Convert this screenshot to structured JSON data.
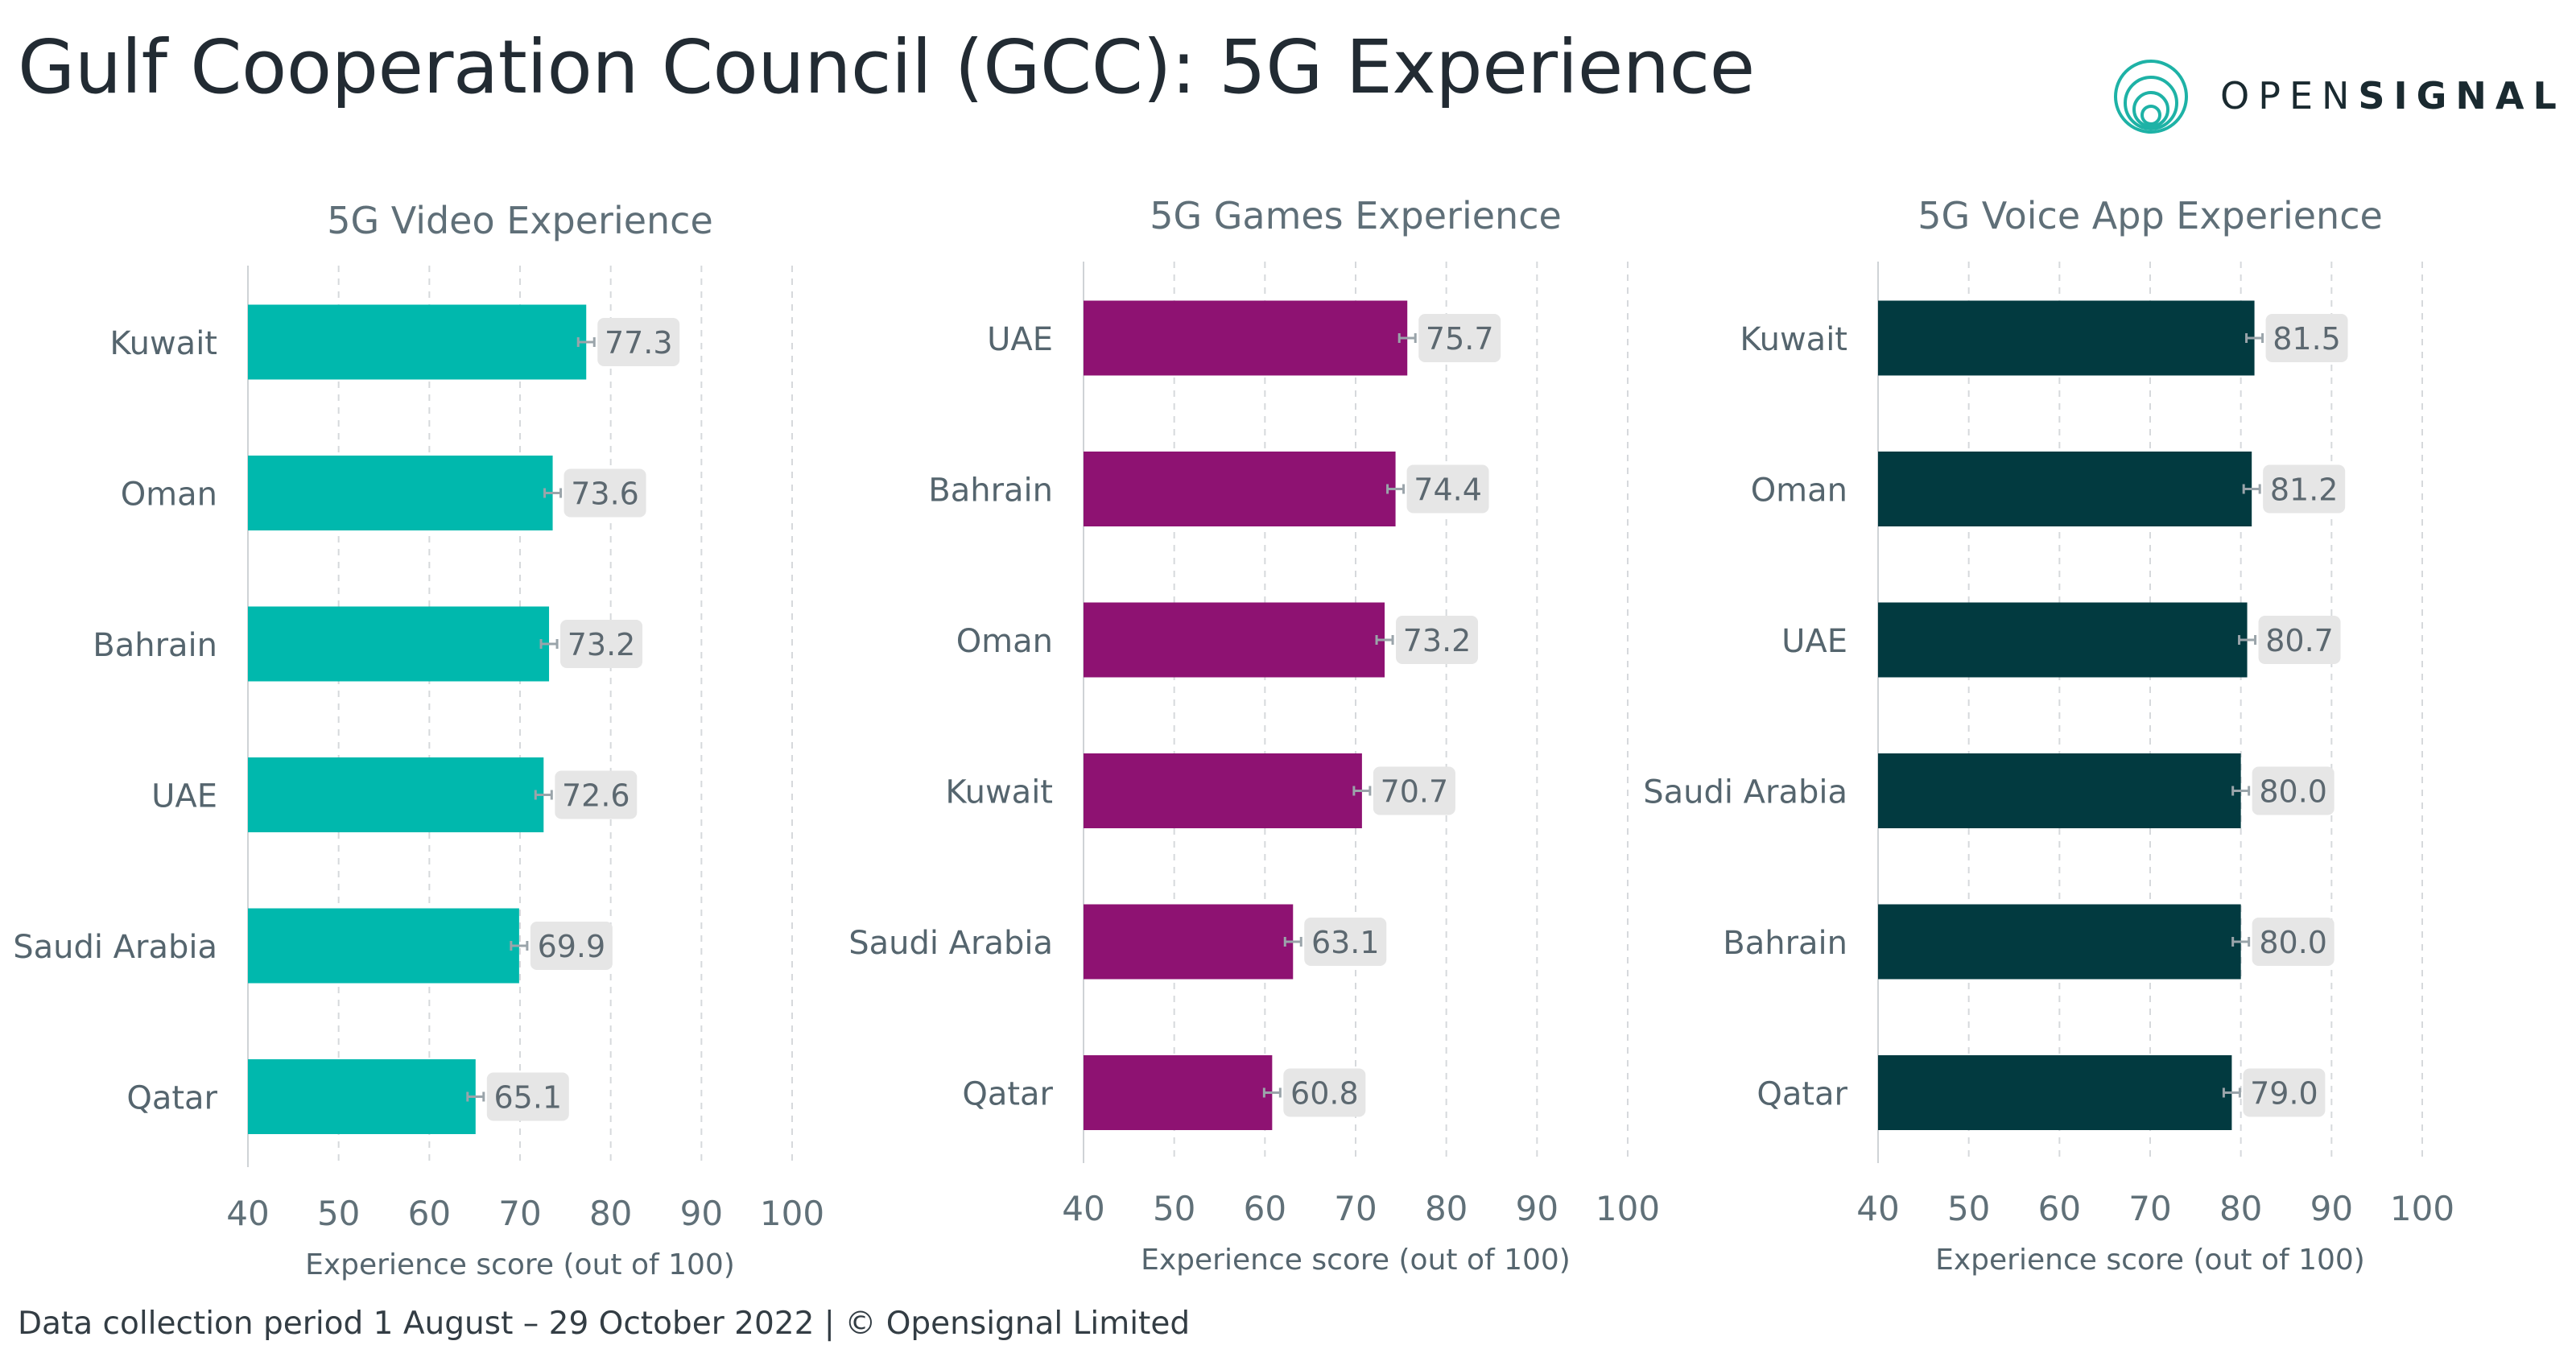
{
  "title": "Gulf Cooperation Council (GCC): 5G Experience",
  "brand": {
    "name_light": "OPEN",
    "name_bold": "SIGNAL",
    "color": "#1eb2a6"
  },
  "footer": {
    "text": "Data collection period 1 August – 29 October 2022  |  © Opensignal Limited"
  },
  "chart_data": [
    {
      "type": "bar",
      "orientation": "horizontal",
      "title": "5G Video Experience",
      "xlabel": "Experience score (out of 100)",
      "xlim": [
        40,
        100
      ],
      "xticks": [
        "40",
        "50",
        "60",
        "70",
        "80",
        "90",
        "100"
      ],
      "color": "#00b8ad",
      "categories": [
        "Kuwait",
        "Oman",
        "Bahrain",
        "UAE",
        "Saudi Arabia",
        "Qatar"
      ],
      "values": [
        77.3,
        73.6,
        73.2,
        72.6,
        69.9,
        65.1
      ],
      "labels": [
        "77.3",
        "73.6",
        "73.2",
        "72.6",
        "69.9",
        "65.1"
      ]
    },
    {
      "type": "bar",
      "orientation": "horizontal",
      "title": "5G Games Experience",
      "xlabel": "Experience score (out of 100)",
      "xlim": [
        40,
        100
      ],
      "xticks": [
        "40",
        "50",
        "60",
        "70",
        "80",
        "90",
        "100"
      ],
      "color": "#8e1272",
      "categories": [
        "UAE",
        "Bahrain",
        "Oman",
        "Kuwait",
        "Saudi Arabia",
        "Qatar"
      ],
      "values": [
        75.7,
        74.4,
        73.2,
        70.7,
        63.1,
        60.8
      ],
      "labels": [
        "75.7",
        "74.4",
        "73.2",
        "70.7",
        "63.1",
        "60.8"
      ]
    },
    {
      "type": "bar",
      "orientation": "horizontal",
      "title": "5G Voice App Experience",
      "xlabel": "Experience score (out of 100)",
      "xlim": [
        40,
        100
      ],
      "xticks": [
        "40",
        "50",
        "60",
        "70",
        "80",
        "90",
        "100"
      ],
      "color": "#023a40",
      "categories": [
        "Kuwait",
        "Oman",
        "UAE",
        "Saudi Arabia",
        "Bahrain",
        "Qatar"
      ],
      "values": [
        81.5,
        81.2,
        80.7,
        80.0,
        80.0,
        79.0
      ],
      "labels": [
        "81.5",
        "81.2",
        "80.7",
        "80.0",
        "80.0",
        "79.0"
      ]
    }
  ]
}
